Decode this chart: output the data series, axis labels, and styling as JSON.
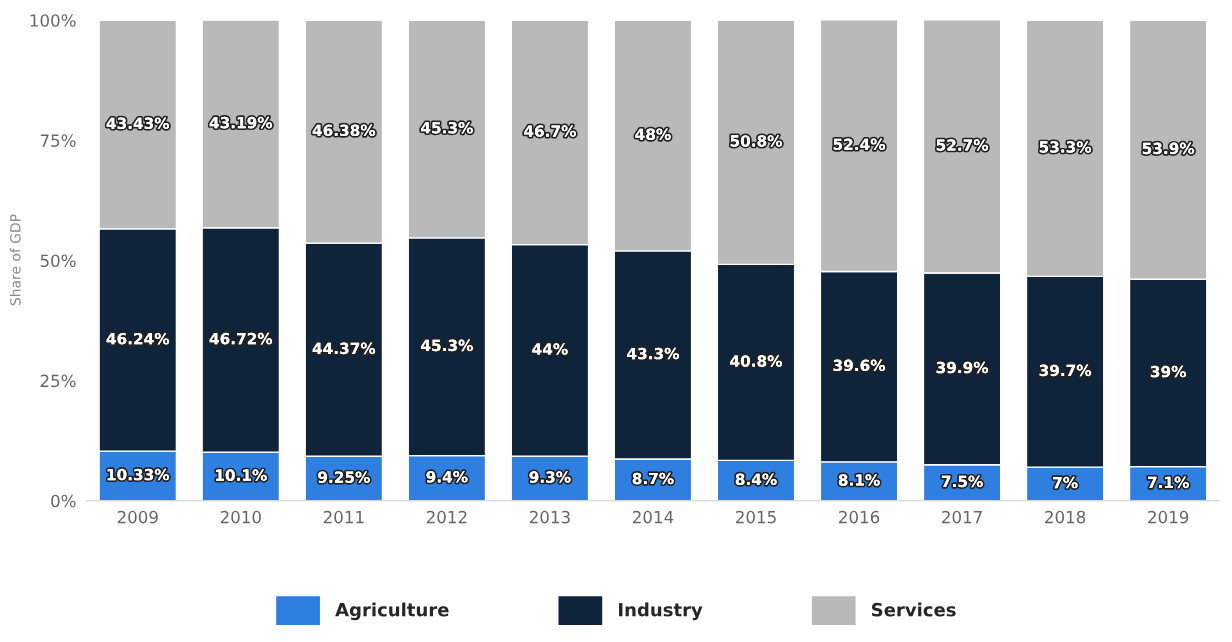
{
  "chart_data": {
    "type": "bar",
    "stacked": true,
    "ylabel": "Share of GDP",
    "categories": [
      "2009",
      "2010",
      "2011",
      "2012",
      "2013",
      "2014",
      "2015",
      "2016",
      "2017",
      "2018",
      "2019"
    ],
    "series": [
      {
        "name": "Agriculture",
        "color": "#2f7fe0",
        "values": [
          10.33,
          10.1,
          9.25,
          9.4,
          9.3,
          8.7,
          8.4,
          8.1,
          7.5,
          7,
          7.1
        ],
        "value_labels": [
          "10.33%",
          "10.1%",
          "9.25%",
          "9.4%",
          "9.3%",
          "8.7%",
          "8.4%",
          "8.1%",
          "7.5%",
          "7%",
          "7.1%"
        ]
      },
      {
        "name": "Industry",
        "color": "#0f243b",
        "values": [
          46.24,
          46.72,
          44.37,
          45.3,
          44,
          43.3,
          40.8,
          39.6,
          39.9,
          39.7,
          39
        ],
        "value_labels": [
          "46.24%",
          "46.72%",
          "44.37%",
          "45.3%",
          "44%",
          "43.3%",
          "40.8%",
          "39.6%",
          "39.9%",
          "39.7%",
          "39%"
        ]
      },
      {
        "name": "Services",
        "color": "#b9b9b9",
        "values": [
          43.43,
          43.19,
          46.38,
          45.3,
          46.7,
          48,
          50.8,
          52.4,
          52.7,
          53.3,
          53.9
        ],
        "value_labels": [
          "43.43%",
          "43.19%",
          "46.38%",
          "45.3%",
          "46.7%",
          "48%",
          "50.8%",
          "52.4%",
          "52.7%",
          "53.3%",
          "53.9%"
        ]
      }
    ],
    "ylim": [
      0,
      100.2
    ],
    "yticks": [
      {
        "value": 0,
        "label": "0%"
      },
      {
        "value": 25,
        "label": "25%"
      },
      {
        "value": 50,
        "label": "50%"
      },
      {
        "value": 75,
        "label": "75%"
      },
      {
        "value": 100,
        "label": "100%"
      }
    ],
    "legend": "bottom"
  }
}
